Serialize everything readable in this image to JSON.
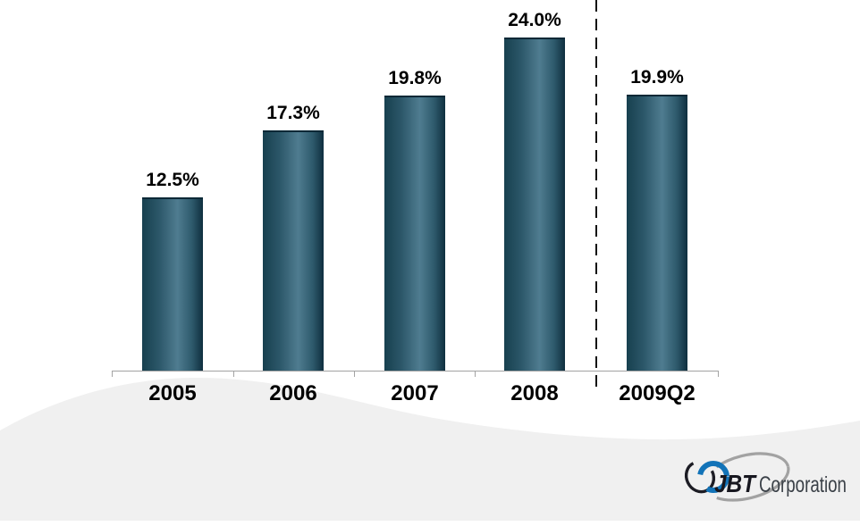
{
  "chart_data": {
    "type": "bar",
    "title": "",
    "xlabel": "",
    "ylabel": "",
    "categories": [
      "2005",
      "2006",
      "2007",
      "2008",
      "2009Q2"
    ],
    "values": [
      12.5,
      17.3,
      19.8,
      24.0,
      19.9
    ],
    "data_labels": [
      "12.5%",
      "17.3%",
      "19.8%",
      "24.0%",
      "19.9%"
    ],
    "ylim": [
      0,
      26.7
    ],
    "grid": false,
    "legend": "none",
    "y_axis_visible": false,
    "separator": {
      "between": [
        "2008",
        "2009Q2"
      ],
      "style": "vertical-dashed-line",
      "color": "#121212"
    },
    "bar_gradient": [
      "#17404f",
      "#4f7c90",
      "#0f2f3f"
    ],
    "bar_top_edge_color": "#0a2836",
    "axis_color": "#a3a3a3",
    "label_color": "#000000"
  },
  "footer": {
    "wave_color": "#f0f0f0"
  },
  "logo": {
    "brand": "JBT",
    "suffix": "Corporation",
    "brand_color": "#17171f",
    "suffix_color": "#3b4148",
    "ring_blue": "#1273b8",
    "ring_black": "#1c1c24",
    "orbit_gray": "#a2a2a2"
  }
}
